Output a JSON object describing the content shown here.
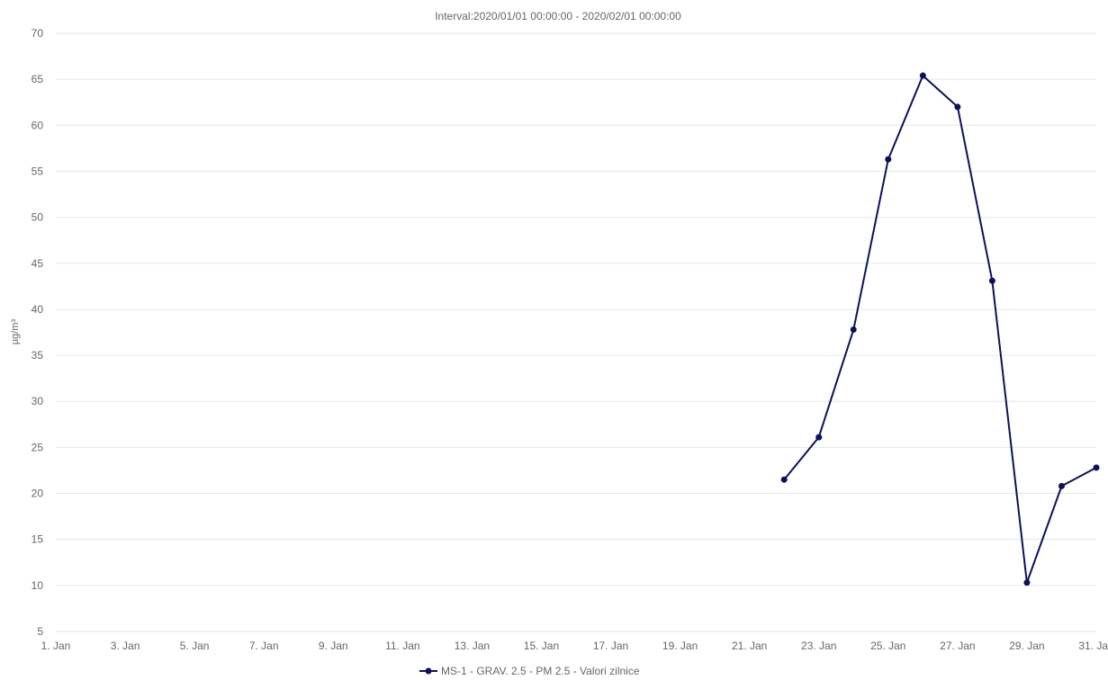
{
  "chart_data": {
    "type": "line",
    "subtitle": "Interval:2020/01/01 00:00:00 - 2020/02/01 00:00:00",
    "ylabel": "µg/m³",
    "ylim": [
      5,
      70
    ],
    "yticks": [
      5,
      10,
      15,
      20,
      25,
      30,
      35,
      40,
      45,
      50,
      55,
      60,
      65,
      70
    ],
    "xlim": [
      "2020-01-01",
      "2020-01-31"
    ],
    "xticks": [
      {
        "date": "2020-01-01",
        "label": "1. Jan"
      },
      {
        "date": "2020-01-03",
        "label": "3. Jan"
      },
      {
        "date": "2020-01-05",
        "label": "5. Jan"
      },
      {
        "date": "2020-01-07",
        "label": "7. Jan"
      },
      {
        "date": "2020-01-09",
        "label": "9. Jan"
      },
      {
        "date": "2020-01-11",
        "label": "11. Jan"
      },
      {
        "date": "2020-01-13",
        "label": "13. Jan"
      },
      {
        "date": "2020-01-15",
        "label": "15. Jan"
      },
      {
        "date": "2020-01-17",
        "label": "17. Jan"
      },
      {
        "date": "2020-01-19",
        "label": "19. Jan"
      },
      {
        "date": "2020-01-21",
        "label": "21. Jan"
      },
      {
        "date": "2020-01-23",
        "label": "23. Jan"
      },
      {
        "date": "2020-01-25",
        "label": "25. Jan"
      },
      {
        "date": "2020-01-27",
        "label": "27. Jan"
      },
      {
        "date": "2020-01-29",
        "label": "29. Jan"
      },
      {
        "date": "2020-01-31",
        "label": "31. Jan"
      }
    ],
    "grid": true,
    "legend": "bottom-center",
    "series": [
      {
        "name": "MS-1 - GRAV. 2.5 - PM 2.5 - Valori zilnice",
        "color": "#0d1159",
        "x": [
          "2020-01-22",
          "2020-01-23",
          "2020-01-24",
          "2020-01-25",
          "2020-01-26",
          "2020-01-27",
          "2020-01-28",
          "2020-01-29",
          "2020-01-30",
          "2020-01-31"
        ],
        "y": [
          21.5,
          26.1,
          37.8,
          56.3,
          65.4,
          62.0,
          43.1,
          10.3,
          20.8,
          22.8
        ]
      }
    ]
  }
}
